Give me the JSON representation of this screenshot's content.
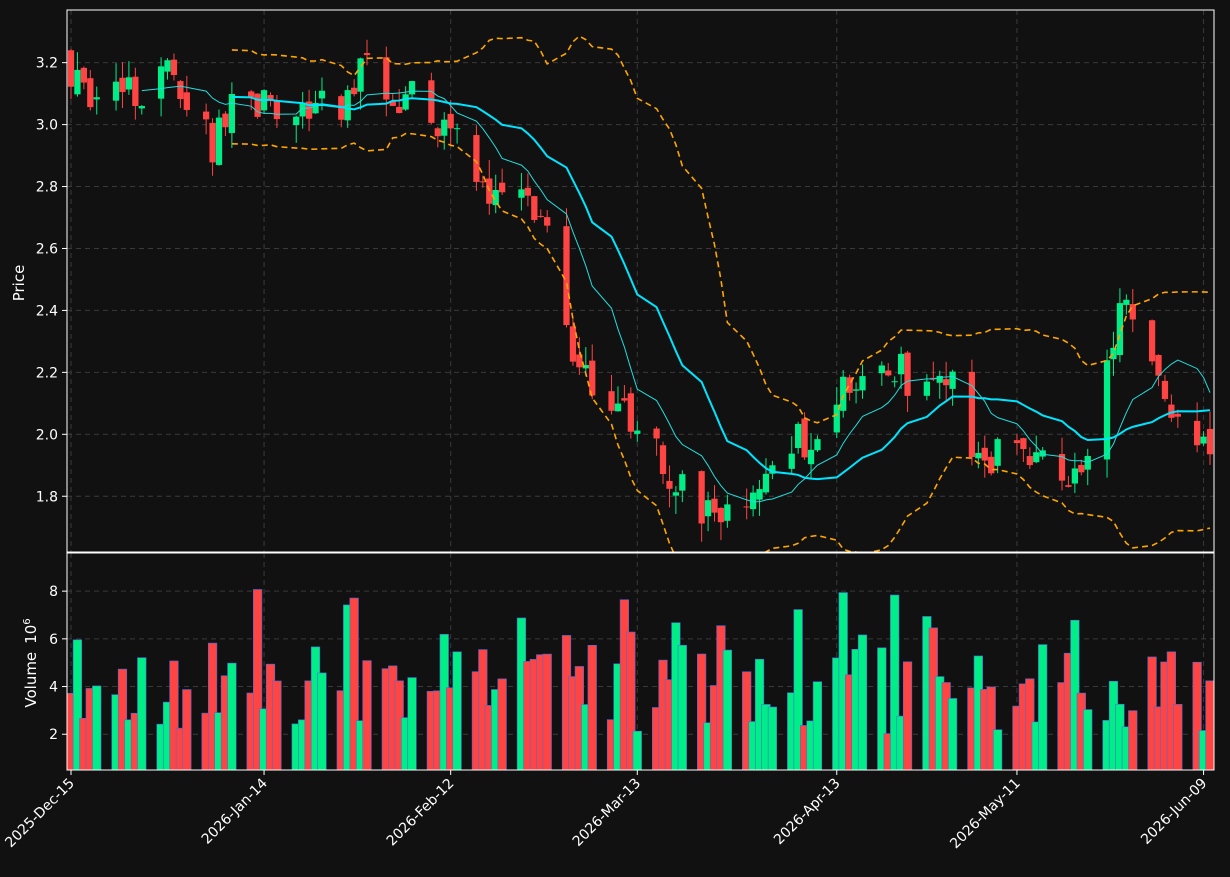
{
  "colors": {
    "background": "#111111",
    "axis": "#ffffff",
    "grid": "#3a3a3a",
    "up": "#00ee88",
    "down": "#ff4444",
    "ma_fast": "#22dddd",
    "ma_slow": "#00e5ff",
    "bollinger": "#ffa500"
  },
  "chart_data": {
    "type": "candlestick",
    "grid": true,
    "price_axis": {
      "label": "Price",
      "range": [
        1.62,
        3.37
      ],
      "ticks": [
        1.8,
        2.0,
        2.2,
        2.4,
        2.6,
        2.8,
        3.0,
        3.2
      ],
      "tick_labels": [
        "1.8",
        "2.0",
        "2.2",
        "2.4",
        "2.6",
        "2.8",
        "3.0",
        "3.2"
      ]
    },
    "volume_axis": {
      "label": "Volume",
      "multiplier_base": "10",
      "multiplier_exp": "6",
      "range": [
        0.5,
        9.6
      ],
      "ticks": [
        2,
        4,
        6,
        8
      ],
      "tick_labels": [
        "2",
        "4",
        "6",
        "8"
      ]
    },
    "x_axis": {
      "start": "2025-12-15",
      "end": "2026-06-10",
      "ticks": [
        "2025-12-15",
        "2026-01-14",
        "2026-02-12",
        "2026-03-13",
        "2026-04-13",
        "2026-05-11",
        "2026-06-09"
      ],
      "tick_labels": [
        "2025-Dec-15",
        "2026-Jan-14",
        "2026-Feb-12",
        "2026-Mar-13",
        "2026-Apr-13",
        "2026-May-11",
        "2026-Jun-09"
      ]
    },
    "price_anchors": [
      [
        "2025-12-15",
        3.18
      ],
      [
        "2025-12-19",
        3.07
      ],
      [
        "2025-12-24",
        3.1
      ],
      [
        "2025-12-31",
        3.17
      ],
      [
        "2026-01-03",
        3.04
      ],
      [
        "2026-01-06",
        2.92
      ],
      [
        "2026-01-09",
        3.05
      ],
      [
        "2026-01-14",
        3.08
      ],
      [
        "2026-01-20",
        3.05
      ],
      [
        "2026-01-26",
        3.07
      ],
      [
        "2026-01-30",
        3.22
      ],
      [
        "2026-02-03",
        3.02
      ],
      [
        "2026-02-06",
        3.1
      ],
      [
        "2026-02-12",
        2.98
      ],
      [
        "2026-02-16",
        2.79
      ],
      [
        "2026-02-20",
        2.78
      ],
      [
        "2026-02-24",
        2.79
      ],
      [
        "2026-02-28",
        2.6
      ],
      [
        "2026-03-03",
        2.25
      ],
      [
        "2026-03-06",
        2.15
      ],
      [
        "2026-03-11",
        2.08
      ],
      [
        "2026-03-15",
        1.97
      ],
      [
        "2026-03-19",
        1.85
      ],
      [
        "2026-03-23",
        1.73
      ],
      [
        "2026-03-27",
        1.72
      ],
      [
        "2026-03-31",
        1.78
      ],
      [
        "2026-04-03",
        1.95
      ],
      [
        "2026-04-08",
        1.98
      ],
      [
        "2026-04-13",
        2.12
      ],
      [
        "2026-04-17",
        2.2
      ],
      [
        "2026-04-22",
        2.23
      ],
      [
        "2026-04-26",
        2.13
      ],
      [
        "2026-05-01",
        2.15
      ],
      [
        "2026-05-05",
        1.92
      ],
      [
        "2026-05-11",
        1.96
      ],
      [
        "2026-05-15",
        1.93
      ],
      [
        "2026-05-19",
        1.84
      ],
      [
        "2026-05-23",
        1.98
      ],
      [
        "2026-05-27",
        2.4
      ],
      [
        "2026-05-31",
        2.35
      ],
      [
        "2026-06-03",
        2.15
      ],
      [
        "2026-06-07",
        1.93
      ],
      [
        "2026-06-10",
        1.97
      ]
    ],
    "series": [
      {
        "type": "candles"
      },
      {
        "type": "line",
        "window": 10
      },
      {
        "type": "line",
        "window": 20
      },
      {
        "type": "band",
        "window": 20,
        "k": 2
      },
      {
        "type": "volume_bars"
      }
    ]
  }
}
